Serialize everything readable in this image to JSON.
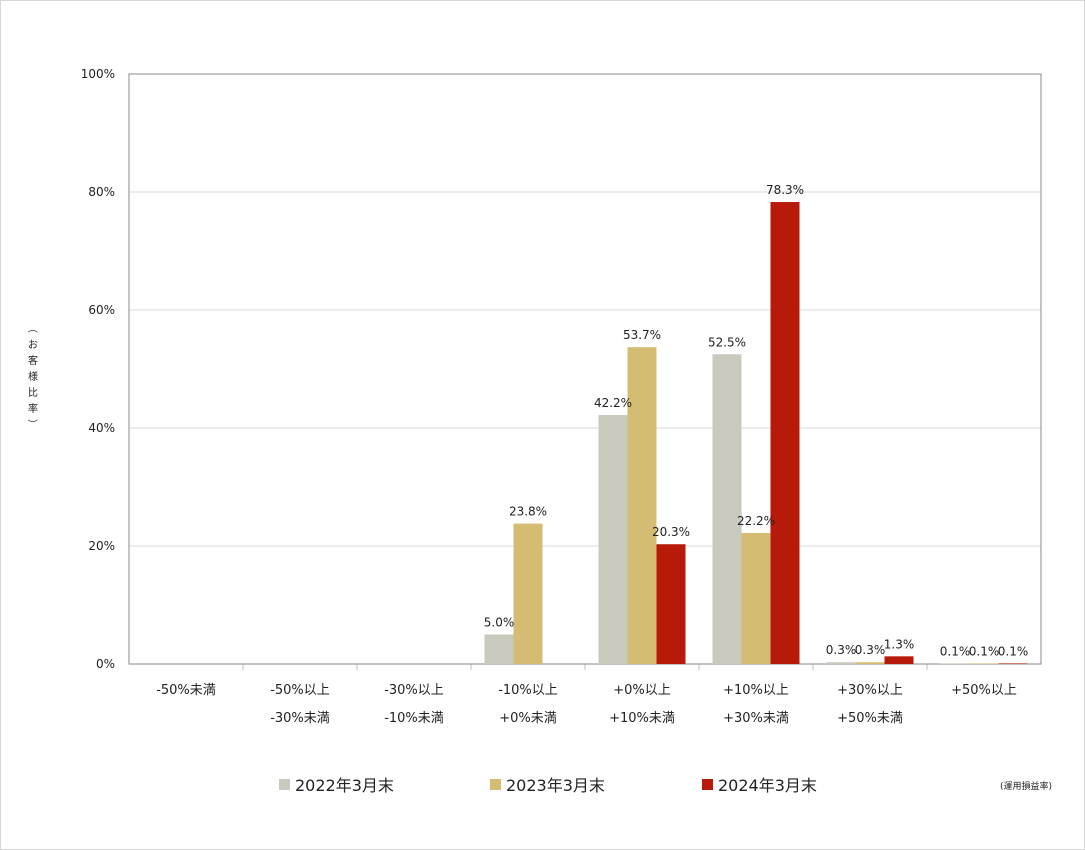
{
  "chart_data": {
    "type": "bar",
    "ylabel_chars": [
      "（",
      "お",
      "客",
      "様",
      "比",
      "率",
      "）"
    ],
    "note": "(運用損益率)",
    "ylim": [
      0,
      100
    ],
    "yticks": [
      "0%",
      "20%",
      "40%",
      "60%",
      "80%",
      "100%"
    ],
    "ytick_values": [
      0,
      20,
      40,
      60,
      80,
      100
    ],
    "grid": true,
    "legend_position": "bottom",
    "categories": [
      [
        "-50%未満"
      ],
      [
        "-50%以上",
        "-30%未満"
      ],
      [
        "-30%以上",
        "-10%未満"
      ],
      [
        "-10%以上",
        "+0%未満"
      ],
      [
        "+0%以上",
        "+10%未満"
      ],
      [
        "+10%以上",
        "+30%未満"
      ],
      [
        "+30%以上",
        "+50%未満"
      ],
      [
        "+50%以上"
      ]
    ],
    "series": [
      {
        "name": "2022年3月末",
        "color": "#c9c9bd",
        "values": [
          0,
          0,
          0,
          5.0,
          42.2,
          52.5,
          0.3,
          0.1
        ],
        "labels": [
          "",
          "",
          "",
          "5.0%",
          "42.2%",
          "52.5%",
          "0.3%",
          "0.1%"
        ]
      },
      {
        "name": "2023年3月末",
        "color": "#d4bd72",
        "values": [
          0,
          0,
          0,
          23.8,
          53.7,
          22.2,
          0.3,
          0.1
        ],
        "labels": [
          "",
          "",
          "",
          "23.8%",
          "53.7%",
          "22.2%",
          "0.3%",
          "0.1%"
        ]
      },
      {
        "name": "2024年3月末",
        "color": "#b81a0a",
        "values": [
          0,
          0,
          0,
          0,
          20.3,
          78.3,
          1.3,
          0.1
        ],
        "labels": [
          "",
          "",
          "",
          "",
          "20.3%",
          "78.3%",
          "1.3%",
          "0.1%"
        ]
      }
    ]
  }
}
